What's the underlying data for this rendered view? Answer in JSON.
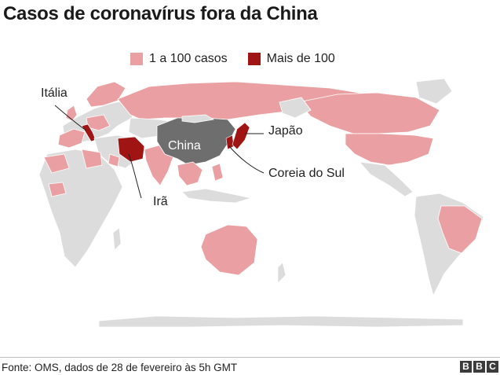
{
  "title": "Casos de coronavírus fora da China",
  "legend": [
    {
      "label": "1 a 100 casos",
      "color": "#eaa0a2"
    },
    {
      "label": "Mais de 100",
      "color": "#a01414"
    }
  ],
  "colors": {
    "no_cases": "#dcdcdc",
    "low": "#eaa0a2",
    "high": "#a01414",
    "china": "#6e6e6e"
  },
  "labels": {
    "italia": "Itália",
    "china": "China",
    "japao": "Japão",
    "coreia": "Coreia do Sul",
    "ira": "Irã"
  },
  "source": "Fonte: OMS, dados de 28 de fevereiro às 5h GMT",
  "logo": [
    "B",
    "B",
    "C"
  ]
}
